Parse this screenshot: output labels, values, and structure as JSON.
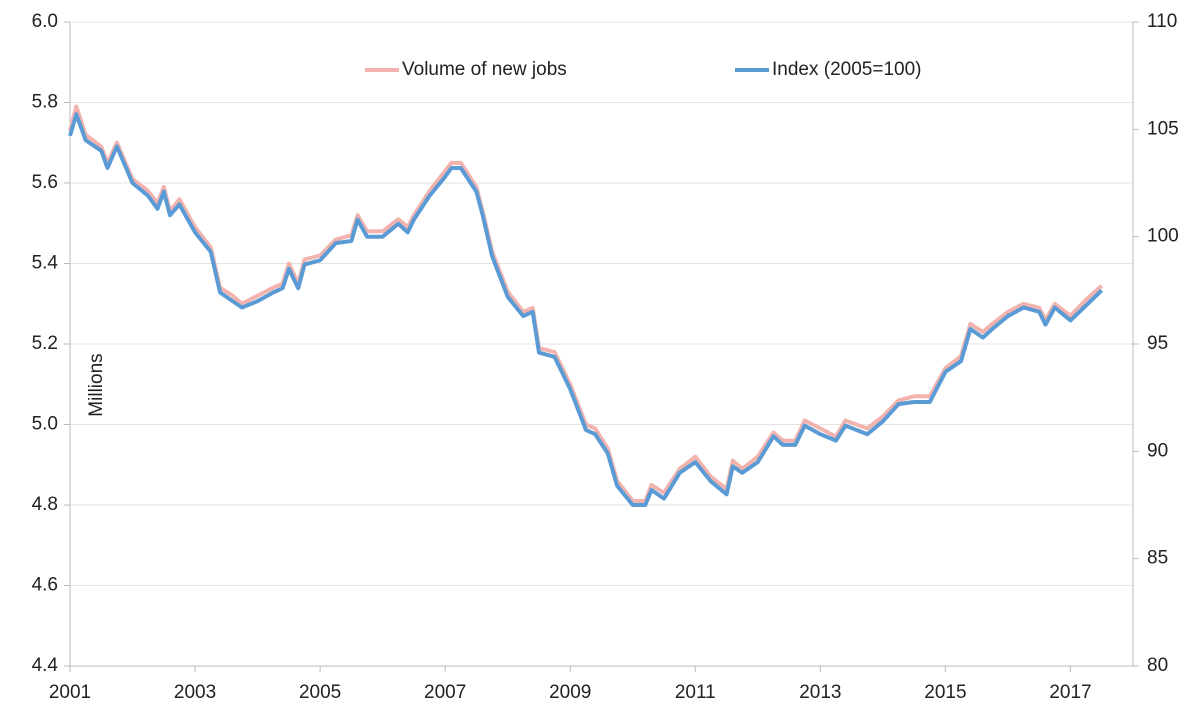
{
  "chart_data": {
    "type": "line",
    "y_label": "Millions",
    "x": [
      2001.0,
      2001.1,
      2001.25,
      2001.5,
      2001.6,
      2001.75,
      2002.0,
      2002.25,
      2002.4,
      2002.5,
      2002.6,
      2002.75,
      2003.0,
      2003.25,
      2003.4,
      2003.6,
      2003.75,
      2004.0,
      2004.25,
      2004.4,
      2004.5,
      2004.65,
      2004.75,
      2005.0,
      2005.25,
      2005.5,
      2005.6,
      2005.75,
      2006.0,
      2006.25,
      2006.4,
      2006.5,
      2006.75,
      2007.0,
      2007.1,
      2007.25,
      2007.5,
      2007.6,
      2007.75,
      2008.0,
      2008.25,
      2008.4,
      2008.5,
      2008.75,
      2009.0,
      2009.25,
      2009.4,
      2009.6,
      2009.75,
      2010.0,
      2010.2,
      2010.3,
      2010.5,
      2010.75,
      2011.0,
      2011.25,
      2011.5,
      2011.6,
      2011.75,
      2012.0,
      2012.25,
      2012.4,
      2012.6,
      2012.75,
      2013.0,
      2013.25,
      2013.4,
      2013.75,
      2014.0,
      2014.25,
      2014.5,
      2014.75,
      2015.0,
      2015.25,
      2015.4,
      2015.6,
      2015.75,
      2016.0,
      2016.25,
      2016.5,
      2016.6,
      2016.75,
      2017.0,
      2017.25,
      2017.5
    ],
    "series": [
      {
        "name": "Volume of new jobs",
        "color": "#f2b3ae",
        "values": [
          5.73,
          5.79,
          5.72,
          5.69,
          5.65,
          5.7,
          5.61,
          5.58,
          5.55,
          5.59,
          5.53,
          5.56,
          5.49,
          5.44,
          5.34,
          5.32,
          5.3,
          5.32,
          5.34,
          5.35,
          5.4,
          5.35,
          5.41,
          5.42,
          5.46,
          5.47,
          5.52,
          5.48,
          5.48,
          5.51,
          5.49,
          5.52,
          5.58,
          5.63,
          5.65,
          5.65,
          5.59,
          5.53,
          5.43,
          5.33,
          5.28,
          5.29,
          5.19,
          5.18,
          5.1,
          5.0,
          4.99,
          4.94,
          4.86,
          4.81,
          4.81,
          4.85,
          4.83,
          4.89,
          4.92,
          4.87,
          4.84,
          4.91,
          4.89,
          4.92,
          4.98,
          4.96,
          4.96,
          5.01,
          4.99,
          4.97,
          5.01,
          4.99,
          5.02,
          5.06,
          5.07,
          5.07,
          5.14,
          5.17,
          5.25,
          5.23,
          5.25,
          5.28,
          5.3,
          5.29,
          5.26,
          5.3,
          5.27,
          5.31,
          5.345
        ]
      },
      {
        "name": "Index (2005=100)",
        "color": "#5b9bd5",
        "axis": "y2",
        "values": [
          104.7,
          105.7,
          104.5,
          104.0,
          103.2,
          104.2,
          102.5,
          101.9,
          101.3,
          102.1,
          101.0,
          101.5,
          100.2,
          99.3,
          97.4,
          97.0,
          96.7,
          97.0,
          97.4,
          97.6,
          98.5,
          97.6,
          98.7,
          98.9,
          99.7,
          99.8,
          100.8,
          100.0,
          100.0,
          100.6,
          100.2,
          100.8,
          101.9,
          102.8,
          103.2,
          103.2,
          102.1,
          101.0,
          99.1,
          97.2,
          96.3,
          96.5,
          94.6,
          94.4,
          92.9,
          91.0,
          90.8,
          89.9,
          88.4,
          87.5,
          87.5,
          88.2,
          87.8,
          89.0,
          89.5,
          88.6,
          88.0,
          89.3,
          89.0,
          89.5,
          90.7,
          90.3,
          90.3,
          91.2,
          90.8,
          90.5,
          91.2,
          90.8,
          91.4,
          92.2,
          92.3,
          92.3,
          93.7,
          94.2,
          95.7,
          95.3,
          95.7,
          96.3,
          96.7,
          96.5,
          95.9,
          96.7,
          96.1,
          96.8,
          97.5
        ]
      }
    ],
    "xlim": [
      2001,
      2018
    ],
    "xticks": [
      2001,
      2003,
      2005,
      2007,
      2009,
      2011,
      2013,
      2015,
      2017
    ],
    "ylim": [
      4.4,
      6.0
    ],
    "yticks": [
      4.4,
      4.6,
      4.8,
      {
        "value": 5.0,
        "label": "5.0"
      },
      5.2,
      5.4,
      5.6,
      5.8,
      {
        "value": 6.0,
        "label": "6.0"
      }
    ],
    "y2lim": [
      80,
      110
    ],
    "y2ticks": [
      80,
      85,
      90,
      95,
      100,
      105,
      110
    ],
    "grid": true,
    "legend": "top"
  }
}
